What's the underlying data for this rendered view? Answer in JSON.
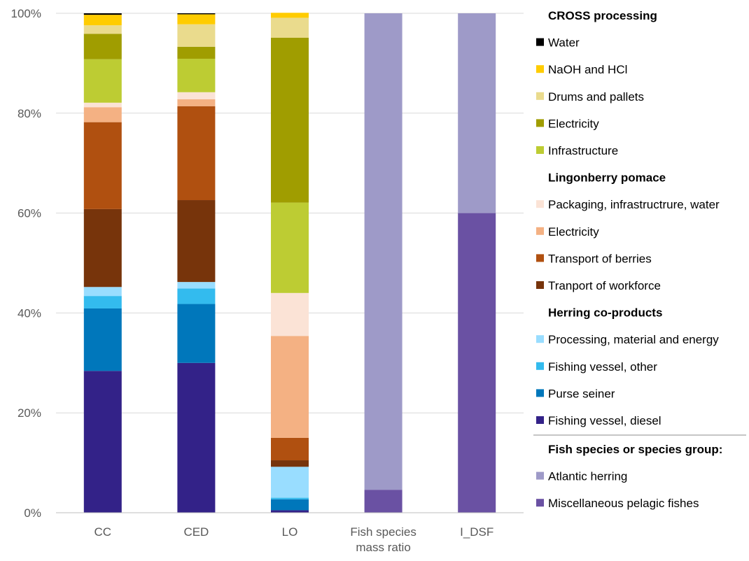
{
  "chart_data": {
    "type": "bar",
    "stacked": true,
    "percent": true,
    "categories": [
      [
        "CC"
      ],
      [
        "CED"
      ],
      [
        "LO"
      ],
      [
        "Fish species",
        "mass ratio"
      ],
      [
        "I_DSF"
      ]
    ],
    "y_ticks": [
      "0%",
      "20%",
      "40%",
      "60%",
      "80%",
      "100%"
    ],
    "ylim": [
      0,
      100
    ],
    "grid": true,
    "legend_position": "right",
    "series": [
      {
        "name": "Fishing vessel, diesel",
        "group": "Herring co-products",
        "color": "#332288",
        "values": [
          28.4,
          30,
          0.5,
          0,
          0
        ]
      },
      {
        "name": "Purse seiner",
        "group": "Herring co-products",
        "color": "#0077BB",
        "values": [
          12.5,
          11.8,
          2.2,
          0,
          0
        ]
      },
      {
        "name": "Fishing vessel, other",
        "group": "Herring co-products",
        "color": "#33BBEE",
        "values": [
          2.5,
          3.1,
          0.3,
          0,
          0
        ]
      },
      {
        "name": "Processing, material and energy",
        "group": "Herring co-products",
        "color": "#99DDFF",
        "values": [
          1.8,
          1.3,
          6.2,
          0,
          0
        ]
      },
      {
        "name": "Tranport of workforce",
        "group": "Lingonberry pomace",
        "color": "#77340B",
        "values": [
          15.6,
          16.4,
          1.3,
          0,
          0
        ]
      },
      {
        "name": "Transport of berries",
        "group": "Lingonberry pomace",
        "color": "#B05010",
        "values": [
          17.4,
          18.8,
          4.5,
          0,
          0
        ]
      },
      {
        "name": "Electricity",
        "group": "Lingonberry pomace",
        "color": "#F4B183",
        "values": [
          3,
          1.4,
          20.4,
          0,
          0
        ]
      },
      {
        "name": "Packaging, infrastructrure, water",
        "group": "Lingonberry pomace",
        "color": "#FBE3D6",
        "values": [
          0.9,
          1.4,
          8.6,
          0,
          0
        ]
      },
      {
        "name": "Infrastructure",
        "group": "CROSS processing",
        "color": "#BDCC33",
        "values": [
          8.7,
          6.7,
          18.1,
          0,
          0
        ]
      },
      {
        "name": "Electricity",
        "group": "CROSS processing",
        "color": "#A09D00",
        "values": [
          5.1,
          2.4,
          33,
          0,
          0
        ]
      },
      {
        "name": "Drums and pallets",
        "group": "CROSS processing",
        "color": "#EADB8D",
        "values": [
          1.7,
          4.5,
          4,
          0,
          0
        ]
      },
      {
        "name": "NaOH and HCl",
        "group": "CROSS processing",
        "color": "#FFCC00",
        "values": [
          2.1,
          2,
          1,
          0,
          0
        ]
      },
      {
        "name": "Water",
        "group": "CROSS processing",
        "color": "#000000",
        "values": [
          0.3,
          0.2,
          0,
          0,
          0
        ]
      },
      {
        "name": "Miscellaneous pelagic fishes",
        "group": "Fish species or species group:",
        "color": "#6A51A3",
        "values": [
          0,
          0,
          0,
          4.6,
          60
        ]
      },
      {
        "name": "Atlantic herring",
        "group": "Fish species or species group:",
        "color": "#9E9AC8",
        "values": [
          0,
          0,
          0,
          95.4,
          40
        ]
      }
    ],
    "legend": [
      {
        "kind": "header",
        "text": "CROSS processing"
      },
      {
        "kind": "item",
        "text": "Water",
        "color": "#000000"
      },
      {
        "kind": "item",
        "text": "NaOH and HCl",
        "color": "#FFCC00"
      },
      {
        "kind": "item",
        "text": "Drums and pallets",
        "color": "#EADB8D"
      },
      {
        "kind": "item",
        "text": "Electricity",
        "color": "#A09D00"
      },
      {
        "kind": "item",
        "text": "Infrastructure",
        "color": "#BDCC33"
      },
      {
        "kind": "header",
        "text": "Lingonberry pomace"
      },
      {
        "kind": "item",
        "text": "Packaging, infrastructrure, water",
        "color": "#FBE3D6"
      },
      {
        "kind": "item",
        "text": "Electricity",
        "color": "#F4B183"
      },
      {
        "kind": "item",
        "text": "Transport of berries",
        "color": "#B05010"
      },
      {
        "kind": "item",
        "text": "Tranport of workforce",
        "color": "#77340B"
      },
      {
        "kind": "header",
        "text": "Herring co-products"
      },
      {
        "kind": "item",
        "text": "Processing, material and energy",
        "color": "#99DDFF"
      },
      {
        "kind": "item",
        "text": "Fishing vessel, other",
        "color": "#33BBEE"
      },
      {
        "kind": "item",
        "text": "Purse seiner",
        "color": "#0077BB"
      },
      {
        "kind": "item",
        "text": "Fishing vessel, diesel",
        "color": "#332288"
      },
      {
        "kind": "separator"
      },
      {
        "kind": "header",
        "text": "Fish species or species group:"
      },
      {
        "kind": "item",
        "text": "Atlantic herring",
        "color": "#9E9AC8"
      },
      {
        "kind": "item",
        "text": "Miscellaneous pelagic fishes",
        "color": "#6A51A3"
      }
    ]
  }
}
